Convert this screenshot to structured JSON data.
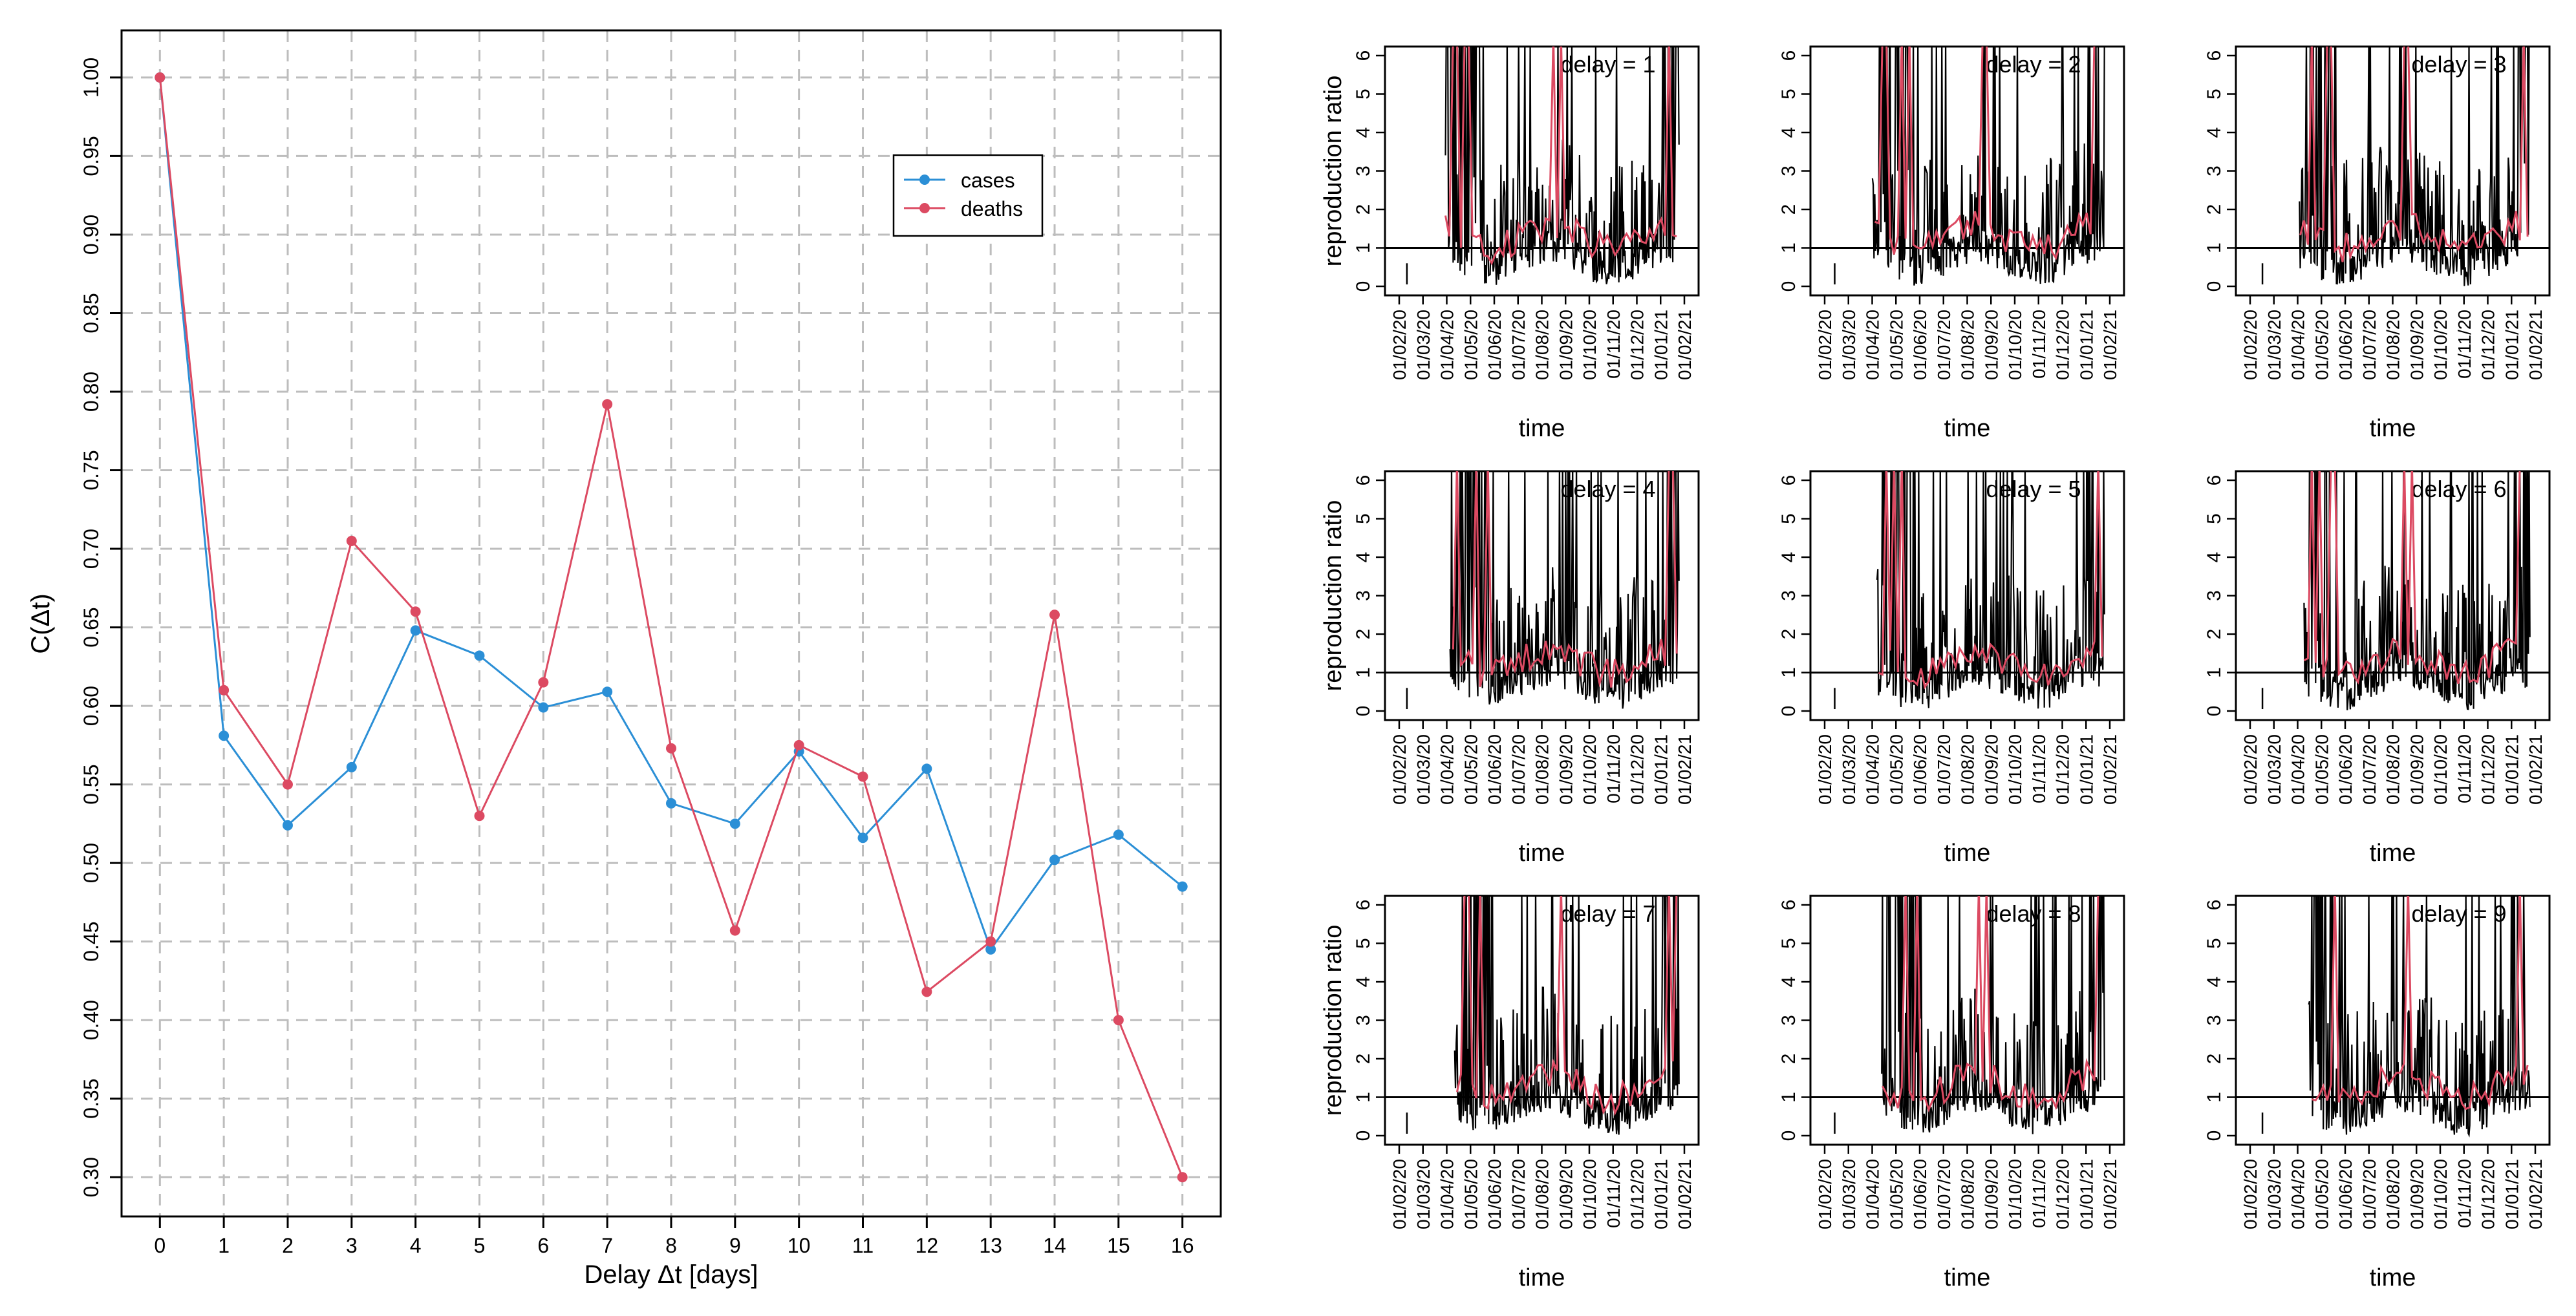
{
  "chart_data": [
    {
      "type": "line",
      "xlabel": "Delay Δt [days]",
      "ylabel": "C(Δt)",
      "x": [
        0,
        1,
        2,
        3,
        4,
        5,
        6,
        7,
        8,
        9,
        10,
        11,
        12,
        13,
        14,
        15,
        16
      ],
      "xlim": [
        -0.6,
        16.6
      ],
      "ylim": [
        0.275,
        1.03
      ],
      "yticks": [
        "0.30",
        "0.35",
        "0.40",
        "0.45",
        "0.50",
        "0.55",
        "0.60",
        "0.65",
        "0.70",
        "0.75",
        "0.80",
        "0.85",
        "0.90",
        "0.95",
        "1.00"
      ],
      "grid": true,
      "legend_position": "top-right",
      "series": [
        {
          "name": "cases",
          "color": "#2b8fd6",
          "values": [
            1.0,
            0.581,
            0.524,
            0.561,
            0.648,
            0.632,
            0.599,
            0.609,
            0.538,
            0.525,
            0.571,
            0.516,
            0.56,
            0.445,
            0.502,
            0.518,
            0.485
          ]
        },
        {
          "name": "deaths",
          "color": "#dc4a62",
          "values": [
            1.0,
            0.61,
            0.55,
            0.705,
            0.66,
            0.53,
            0.615,
            0.792,
            0.573,
            0.457,
            0.575,
            0.555,
            0.418,
            0.45,
            0.658,
            0.4,
            0.3
          ]
        }
      ]
    },
    {
      "type": "line",
      "panels_layout": "3x3 grid of panels",
      "xlabel": "time",
      "ylabel": "reproduction ratio",
      "ylim": [
        0,
        6
      ],
      "yticks": [
        "0",
        "1",
        "2",
        "3",
        "4",
        "5",
        "6"
      ],
      "xticks": [
        "01/02/20",
        "01/03/20",
        "01/04/20",
        "01/05/20",
        "01/06/20",
        "01/07/20",
        "01/08/20",
        "01/09/20",
        "01/10/20",
        "01/11/20",
        "01/12/20",
        "01/01/21",
        "01/02/21"
      ],
      "reference_line": 1,
      "series_colors": [
        "#000000",
        "#dc4a62"
      ],
      "panels": [
        {
          "label": "delay = 1"
        },
        {
          "label": "delay = 2"
        },
        {
          "label": "delay = 3"
        },
        {
          "label": "delay = 4"
        },
        {
          "label": "delay = 5"
        },
        {
          "label": "delay = 6"
        },
        {
          "label": "delay = 7"
        },
        {
          "label": "delay = 8"
        },
        {
          "label": "delay = 9"
        }
      ]
    }
  ]
}
